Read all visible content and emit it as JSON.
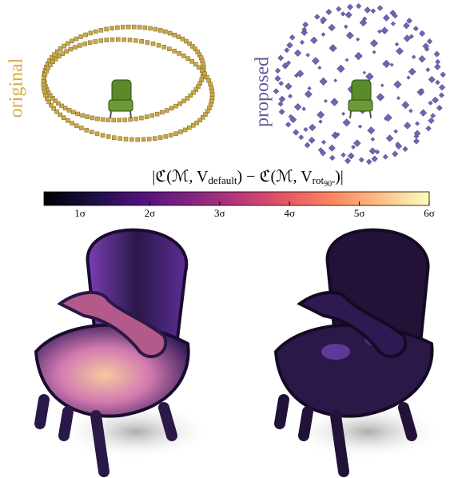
{
  "labels": {
    "left": "original",
    "right": "proposed"
  },
  "formula": {
    "open": "|ℭ(ℳ, V",
    "sub_a": "default",
    "middle": ") − ℭ(ℳ, V",
    "sub_b": "rot",
    "sub_c": "90°",
    "close": ")|"
  },
  "colorbar": {
    "tick_labels": [
      "1σ",
      "2σ",
      "3σ",
      "4σ",
      "5σ",
      "6σ"
    ]
  }
}
